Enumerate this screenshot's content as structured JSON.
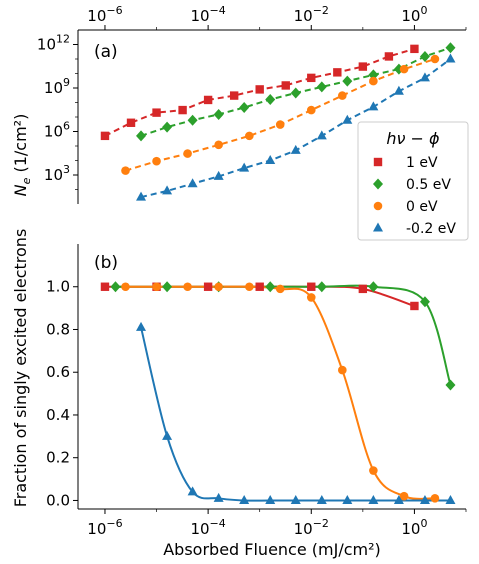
{
  "chart_data": [
    {
      "panel": "(a)",
      "type": "line",
      "xscale": "log",
      "yscale": "log",
      "x_axis_position": "top",
      "ylabel": "N_e (1/cm²)",
      "xlim": [
        3e-07,
        10
      ],
      "ylim": [
        10.0,
        10000000000000.0
      ],
      "xticks": [
        {
          "value": 1e-06,
          "mant": "10",
          "exp": "−6"
        },
        {
          "value": 0.0001,
          "mant": "10",
          "exp": "−4"
        },
        {
          "value": 0.01,
          "mant": "10",
          "exp": "−2"
        },
        {
          "value": 1,
          "mant": "10",
          "exp": "0"
        }
      ],
      "yticks": [
        {
          "value": 1000.0,
          "mant": "10",
          "exp": "3"
        },
        {
          "value": 1000000.0,
          "mant": "10",
          "exp": "6"
        },
        {
          "value": 1000000000.0,
          "mant": "10",
          "exp": "9"
        },
        {
          "value": 1000000000000.0,
          "mant": "10",
          "exp": "12"
        }
      ],
      "grid": false,
      "line_style": "dashed",
      "series": [
        {
          "name": "1 eV",
          "marker": "square",
          "color": "#d62728",
          "x": [
            1e-06,
            3.2e-06,
            1e-05,
            3.2e-05,
            0.0001,
            0.00032,
            0.001,
            0.0032,
            0.01,
            0.032,
            0.1,
            0.32,
            1
          ],
          "y": [
            500000.0,
            4000000.0,
            20000000.0,
            30000000.0,
            150000000.0,
            300000000.0,
            800000000.0,
            1500000000.0,
            5000000000.0,
            12000000000.0,
            30000000000.0,
            150000000000.0,
            500000000000.0
          ]
        },
        {
          "name": "0.5 eV",
          "marker": "diamond",
          "color": "#2ca02c",
          "x": [
            5e-06,
            1.6e-05,
            5e-05,
            0.00016,
            0.0005,
            0.0016,
            0.005,
            0.016,
            0.05,
            0.16,
            0.5,
            1.6,
            5
          ],
          "y": [
            500000.0,
            2000000.0,
            6000000.0,
            15000000.0,
            45000000.0,
            160000000.0,
            450000000.0,
            1200000000.0,
            3000000000.0,
            8000000000.0,
            20000000000.0,
            150000000000.0,
            600000000000.0
          ]
        },
        {
          "name": "0 eV",
          "marker": "circle",
          "color": "#ff7f0e",
          "x": [
            2.5e-06,
            1e-05,
            4e-05,
            0.00016,
            0.00063,
            0.0025,
            0.01,
            0.04,
            0.16,
            0.63,
            2.5
          ],
          "y": [
            2000.0,
            9000.0,
            30000.0,
            120000.0,
            500000.0,
            3000000.0,
            30000000.0,
            300000000.0,
            3000000000.0,
            20000000000.0,
            100000000000.0
          ]
        },
        {
          "name": "-0.2 eV",
          "marker": "triangle",
          "color": "#1f77b4",
          "x": [
            5e-06,
            1.6e-05,
            5e-05,
            0.00016,
            0.0005,
            0.0016,
            0.005,
            0.016,
            0.05,
            0.16,
            0.5,
            1.6,
            5
          ],
          "y": [
            30,
            80,
            250,
            800,
            3000.0,
            10000.0,
            50000.0,
            500000.0,
            6000000.0,
            50000000.0,
            600000000.0,
            5000000000.0,
            100000000000.0
          ]
        }
      ]
    },
    {
      "panel": "(b)",
      "type": "line",
      "xscale": "log",
      "yscale": "linear",
      "xlabel": "Absorbed Fluence (mJ/cm²)",
      "ylabel": "Fraction of singly excited electrons",
      "xlim": [
        3e-07,
        10
      ],
      "ylim": [
        -0.04,
        1.2
      ],
      "xticks": [
        {
          "value": 1e-06,
          "mant": "10",
          "exp": "−6"
        },
        {
          "value": 0.0001,
          "mant": "10",
          "exp": "−4"
        },
        {
          "value": 0.01,
          "mant": "10",
          "exp": "−2"
        },
        {
          "value": 1,
          "mant": "10",
          "exp": "0"
        }
      ],
      "yticks": [
        "0.0",
        "0.2",
        "0.4",
        "0.6",
        "0.8",
        "1.0"
      ],
      "grid": false,
      "line_style": "solid",
      "series": [
        {
          "name": "1 eV",
          "marker": "square",
          "color": "#d62728",
          "x": [
            1e-06,
            1e-05,
            0.0001,
            0.001,
            0.01,
            0.1,
            1
          ],
          "y": [
            1.0,
            1.0,
            1.0,
            1.0,
            1.0,
            0.99,
            0.91
          ]
        },
        {
          "name": "0.5 eV",
          "marker": "diamond",
          "color": "#2ca02c",
          "x": [
            1.6e-06,
            1.6e-05,
            0.00016,
            0.0016,
            0.016,
            0.16,
            1.6,
            5
          ],
          "y": [
            1.0,
            1.0,
            1.0,
            1.0,
            1.0,
            1.0,
            0.93,
            0.54
          ]
        },
        {
          "name": "0 eV",
          "marker": "circle",
          "color": "#ff7f0e",
          "x": [
            2.5e-06,
            1e-05,
            4e-05,
            0.00016,
            0.00063,
            0.0025,
            0.01,
            0.04,
            0.16,
            0.63,
            2.5
          ],
          "y": [
            1.0,
            1.0,
            1.0,
            1.0,
            1.0,
            0.99,
            0.95,
            0.61,
            0.14,
            0.02,
            0.01
          ]
        },
        {
          "name": "-0.2 eV",
          "marker": "triangle",
          "color": "#1f77b4",
          "x": [
            5e-06,
            1.6e-05,
            5e-05,
            0.00016,
            0.0005,
            0.0016,
            0.005,
            0.016,
            0.05,
            0.16,
            0.5,
            1.6,
            5
          ],
          "y": [
            0.81,
            0.3,
            0.04,
            0.01,
            0.0,
            0.0,
            0.0,
            0.0,
            0.0,
            0.0,
            0.0,
            0.0,
            0.0
          ]
        }
      ]
    }
  ],
  "legend": {
    "title": "hν − ϕ",
    "placement": "right, spanning panels (a) and (b)",
    "entries": [
      {
        "label": "1 eV",
        "marker": "square",
        "color": "#d62728"
      },
      {
        "label": "0.5 eV",
        "marker": "diamond",
        "color": "#2ca02c"
      },
      {
        "label": "0 eV",
        "marker": "circle",
        "color": "#ff7f0e"
      },
      {
        "label": "-0.2 eV",
        "marker": "triangle",
        "color": "#1f77b4"
      }
    ]
  }
}
